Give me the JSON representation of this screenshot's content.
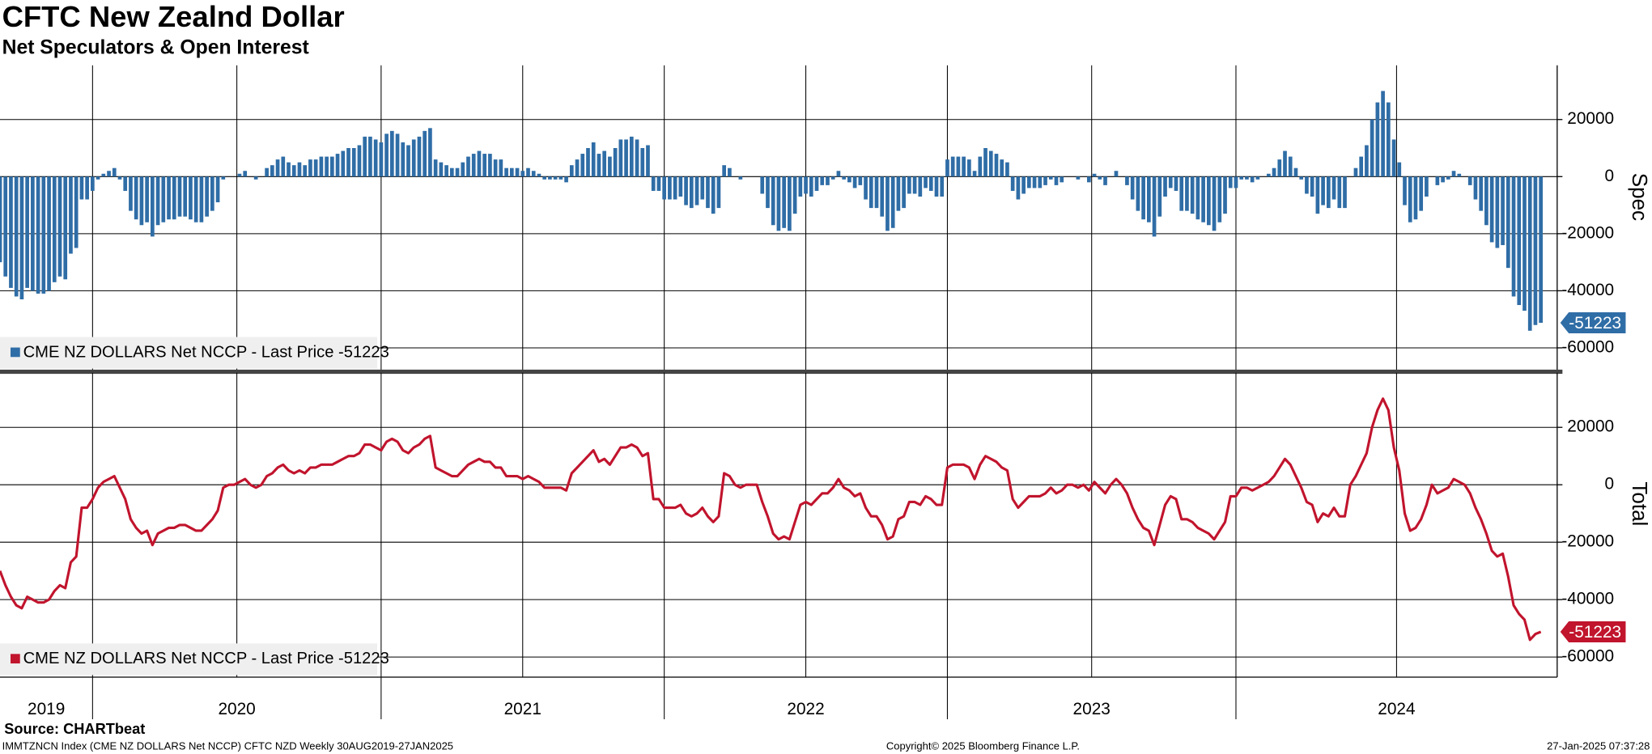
{
  "header": {
    "title": "CFTC New Zealnd Dollar",
    "subtitle": "Net Speculators & Open Interest"
  },
  "chart_data": [
    {
      "type": "bar",
      "axis_label": "Spec",
      "color": "#2f6da6",
      "xlim": [
        0,
        286
      ],
      "ylim": [
        -68000,
        39000
      ],
      "yticks": [
        -60000,
        -40000,
        -20000,
        0,
        20000
      ],
      "grid": true,
      "series": [
        {
          "name": "CME NZ DOLLARS Net NCCP - Last Price -51223",
          "color": "#2f6da6",
          "values": [
            -30000,
            -35000,
            -39000,
            -42000,
            -43000,
            -39000,
            -40000,
            -41000,
            -41000,
            -40000,
            -37000,
            -35000,
            -36000,
            -27000,
            -25000,
            -8000,
            -8000,
            -5000,
            -1000,
            1000,
            2000,
            3000,
            -1000,
            -5000,
            -12000,
            -15000,
            -17000,
            -16000,
            -21000,
            -17000,
            -16000,
            -15000,
            -15000,
            -14000,
            -14000,
            -15000,
            -16000,
            -16000,
            -14000,
            -12000,
            -9000,
            -1000,
            0,
            0,
            1000,
            2000,
            0,
            -1000,
            0,
            3000,
            4000,
            6000,
            7000,
            5000,
            4000,
            5000,
            4000,
            6000,
            6000,
            7000,
            7000,
            7000,
            8000,
            9000,
            10000,
            10000,
            11000,
            14000,
            14000,
            13000,
            12000,
            15000,
            16000,
            15000,
            12000,
            11000,
            13000,
            14000,
            16000,
            17000,
            6000,
            5000,
            4000,
            3000,
            3000,
            5000,
            7000,
            8000,
            9000,
            8000,
            8000,
            6000,
            6000,
            3000,
            3000,
            3000,
            2000,
            3000,
            2000,
            1000,
            -1000,
            -1000,
            -1000,
            -1000,
            -2000,
            4000,
            6000,
            8000,
            10000,
            12000,
            8000,
            9000,
            7000,
            10000,
            13000,
            13000,
            14000,
            13000,
            10000,
            11000,
            -5000,
            -5000,
            -8000,
            -8000,
            -8000,
            -7000,
            -10000,
            -11000,
            -10000,
            -8000,
            -11000,
            -13000,
            -11000,
            4000,
            3000,
            0,
            -1000,
            0,
            0,
            0,
            -6000,
            -11000,
            -17000,
            -19000,
            -18000,
            -19000,
            -13000,
            -7000,
            -6000,
            -7000,
            -5000,
            -3000,
            -3000,
            -1000,
            2000,
            -1000,
            -2000,
            -4000,
            -3000,
            -8000,
            -11000,
            -11000,
            -14000,
            -19000,
            -18000,
            -12000,
            -11000,
            -6000,
            -6000,
            -7000,
            -4000,
            -5000,
            -7000,
            -7000,
            6000,
            7000,
            7000,
            7000,
            6000,
            2000,
            7000,
            10000,
            9000,
            8000,
            6000,
            5000,
            -5000,
            -8000,
            -6000,
            -4000,
            -4000,
            -4000,
            -3000,
            -1000,
            -3000,
            -2000,
            0,
            0,
            -1000,
            0,
            -2000,
            1000,
            -1000,
            -3000,
            0,
            2000,
            0,
            -3000,
            -8000,
            -12000,
            -15000,
            -16000,
            -21000,
            -14000,
            -7000,
            -4000,
            -5000,
            -12000,
            -12000,
            -13000,
            -15000,
            -16000,
            -17000,
            -19000,
            -16000,
            -13000,
            -4000,
            -4000,
            -1000,
            -1000,
            -2000,
            -1000,
            0,
            1000,
            3000,
            6000,
            9000,
            7000,
            3000,
            -1000,
            -6000,
            -7000,
            -13000,
            -10000,
            -11000,
            -8000,
            -11000,
            -11000,
            0,
            3000,
            7000,
            11000,
            20000,
            26000,
            30000,
            26000,
            13000,
            5000,
            -10000,
            -16000,
            -15000,
            -12000,
            -7000,
            0,
            -3000,
            -2000,
            -1000,
            2000,
            1000,
            0,
            -3000,
            -8000,
            -12000,
            -17000,
            -23000,
            -25000,
            -24000,
            -32000,
            -42000,
            -45000,
            -47000,
            -54000,
            -52000,
            -51223
          ]
        }
      ]
    },
    {
      "type": "line",
      "axis_label": "Total",
      "color": "#c1142d",
      "xlim": [
        0,
        286
      ],
      "ylim": [
        -67000,
        39000
      ],
      "yticks": [
        -60000,
        -40000,
        -20000,
        0,
        20000
      ],
      "grid": true,
      "xticks": [
        {
          "value": 0,
          "label": "2019"
        },
        {
          "value": 17,
          "label": "2020"
        },
        {
          "value": 70,
          "label": "2021"
        },
        {
          "value": 122,
          "label": "2022"
        },
        {
          "value": 174,
          "label": "2023"
        },
        {
          "value": 227,
          "label": "2024"
        }
      ],
      "series": [
        {
          "name": "CME NZ DOLLARS Net NCCP - Last Price -51223",
          "color": "#c1142d",
          "values": [
            -30000,
            -35000,
            -39000,
            -42000,
            -43000,
            -39000,
            -40000,
            -41000,
            -41000,
            -40000,
            -37000,
            -35000,
            -36000,
            -27000,
            -25000,
            -8000,
            -8000,
            -5000,
            -1000,
            1000,
            2000,
            3000,
            -1000,
            -5000,
            -12000,
            -15000,
            -17000,
            -16000,
            -21000,
            -17000,
            -16000,
            -15000,
            -15000,
            -14000,
            -14000,
            -15000,
            -16000,
            -16000,
            -14000,
            -12000,
            -9000,
            -1000,
            0,
            0,
            1000,
            2000,
            0,
            -1000,
            0,
            3000,
            4000,
            6000,
            7000,
            5000,
            4000,
            5000,
            4000,
            6000,
            6000,
            7000,
            7000,
            7000,
            8000,
            9000,
            10000,
            10000,
            11000,
            14000,
            14000,
            13000,
            12000,
            15000,
            16000,
            15000,
            12000,
            11000,
            13000,
            14000,
            16000,
            17000,
            6000,
            5000,
            4000,
            3000,
            3000,
            5000,
            7000,
            8000,
            9000,
            8000,
            8000,
            6000,
            6000,
            3000,
            3000,
            3000,
            2000,
            3000,
            2000,
            1000,
            -1000,
            -1000,
            -1000,
            -1000,
            -2000,
            4000,
            6000,
            8000,
            10000,
            12000,
            8000,
            9000,
            7000,
            10000,
            13000,
            13000,
            14000,
            13000,
            10000,
            11000,
            -5000,
            -5000,
            -8000,
            -8000,
            -8000,
            -7000,
            -10000,
            -11000,
            -10000,
            -8000,
            -11000,
            -13000,
            -11000,
            4000,
            3000,
            0,
            -1000,
            0,
            0,
            0,
            -6000,
            -11000,
            -17000,
            -19000,
            -18000,
            -19000,
            -13000,
            -7000,
            -6000,
            -7000,
            -5000,
            -3000,
            -3000,
            -1000,
            2000,
            -1000,
            -2000,
            -4000,
            -3000,
            -8000,
            -11000,
            -11000,
            -14000,
            -19000,
            -18000,
            -12000,
            -11000,
            -6000,
            -6000,
            -7000,
            -4000,
            -5000,
            -7000,
            -7000,
            6000,
            7000,
            7000,
            7000,
            6000,
            2000,
            7000,
            10000,
            9000,
            8000,
            6000,
            5000,
            -5000,
            -8000,
            -6000,
            -4000,
            -4000,
            -4000,
            -3000,
            -1000,
            -3000,
            -2000,
            0,
            0,
            -1000,
            0,
            -2000,
            1000,
            -1000,
            -3000,
            0,
            2000,
            0,
            -3000,
            -8000,
            -12000,
            -15000,
            -16000,
            -21000,
            -14000,
            -7000,
            -4000,
            -5000,
            -12000,
            -12000,
            -13000,
            -15000,
            -16000,
            -17000,
            -19000,
            -16000,
            -13000,
            -4000,
            -4000,
            -1000,
            -1000,
            -2000,
            -1000,
            0,
            1000,
            3000,
            6000,
            9000,
            7000,
            3000,
            -1000,
            -6000,
            -7000,
            -13000,
            -10000,
            -11000,
            -8000,
            -11000,
            -11000,
            0,
            3000,
            7000,
            11000,
            20000,
            26000,
            30000,
            26000,
            13000,
            5000,
            -10000,
            -16000,
            -15000,
            -12000,
            -7000,
            0,
            -3000,
            -2000,
            -1000,
            2000,
            1000,
            0,
            -3000,
            -8000,
            -12000,
            -17000,
            -23000,
            -25000,
            -24000,
            -32000,
            -42000,
            -45000,
            -47000,
            -54000,
            -52000,
            -51223
          ]
        }
      ]
    }
  ],
  "footer": {
    "source": "Source: CHARTbeat",
    "info": "IMMTZNCN Index (CME NZ DOLLARS Net NCCP) CFTC NZD  Weekly 30AUG2019-27JAN2025",
    "copyright": "Copyright© 2025 Bloomberg Finance L.P.",
    "timestamp": "27-Jan-2025 07:37:28"
  }
}
